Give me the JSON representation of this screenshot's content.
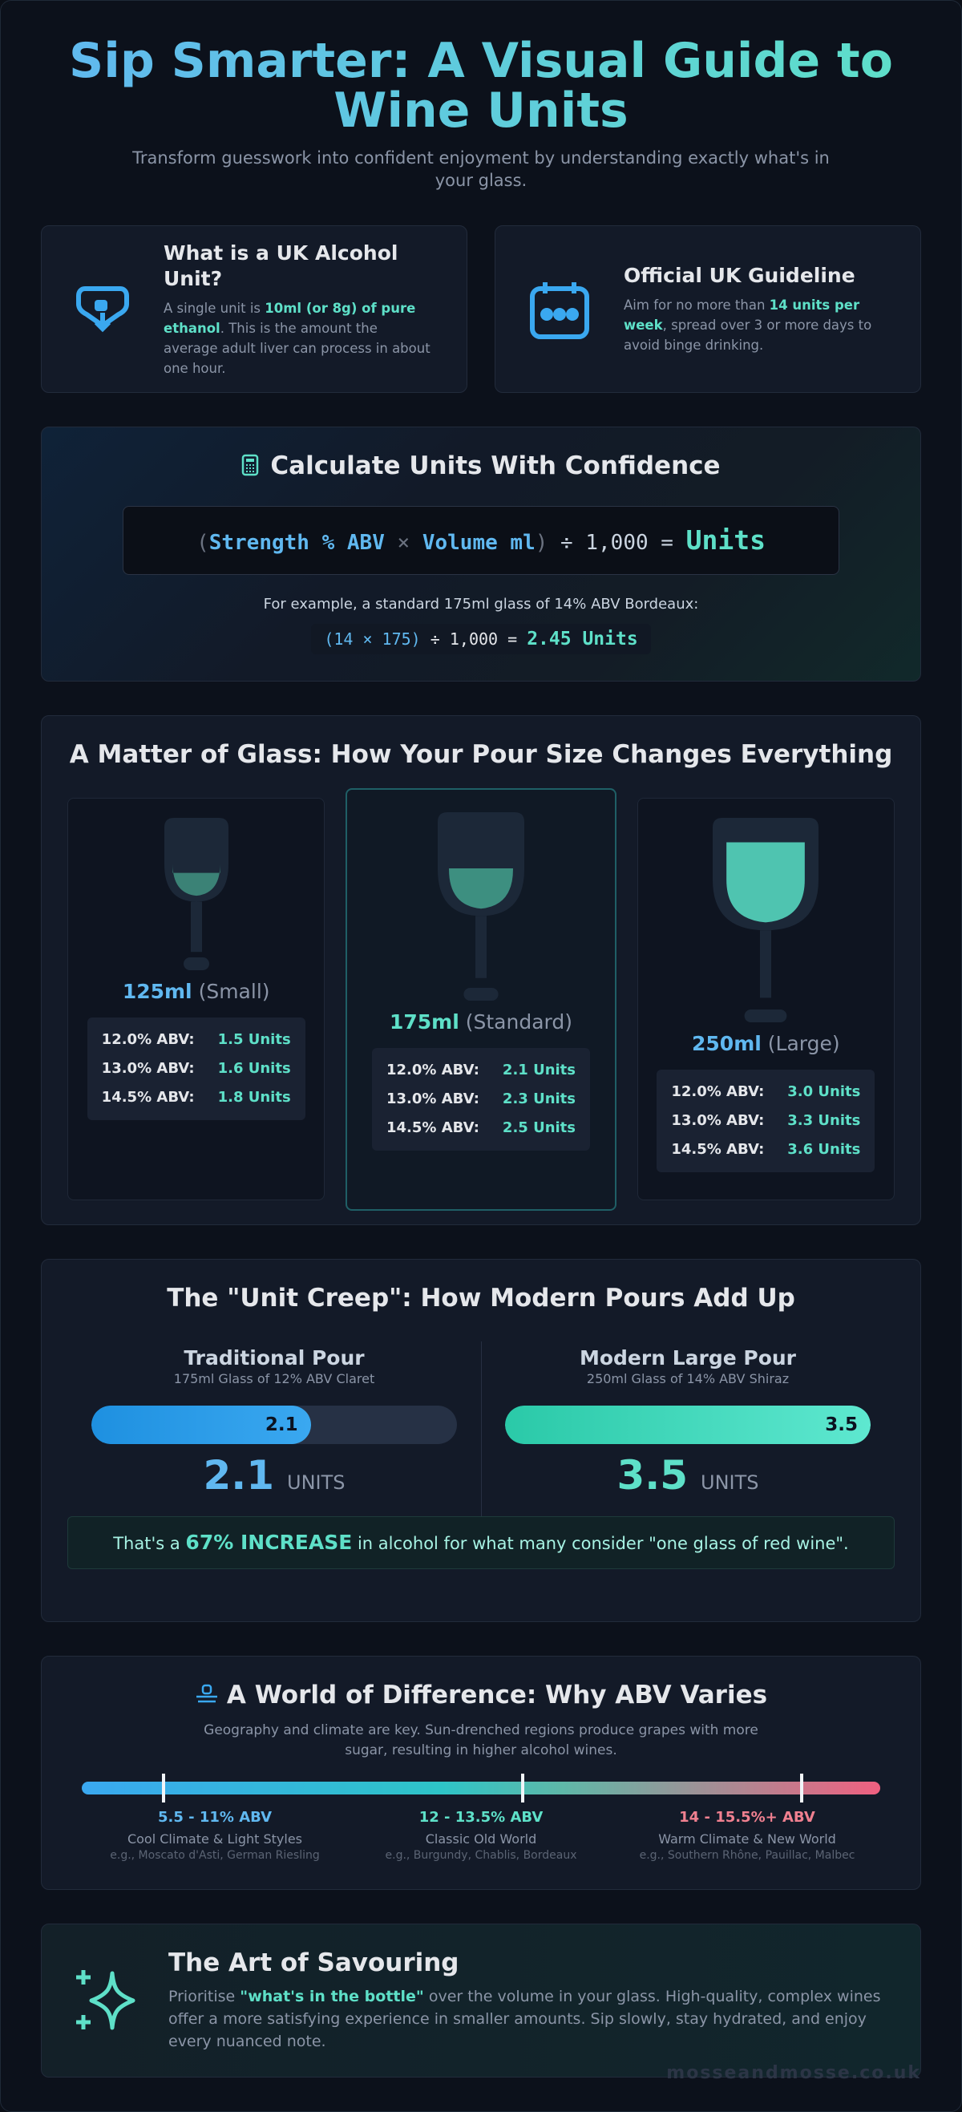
{
  "header": {
    "title": "Sip Smarter: A Visual Guide to Wine Units",
    "subtitle": "Transform guesswork into confident enjoyment by understanding exactly what's in your glass."
  },
  "info_cards": [
    {
      "title": "What is a UK Alcohol Unit?",
      "text_before": "A single unit is ",
      "highlight": "10ml (or 8g) of pure ethanol",
      "text_after": ". This is the amount the average adult liver can process in about one hour."
    },
    {
      "title": "Official UK Guideline",
      "text_before": "Aim for no more than ",
      "highlight": "14 units per week",
      "text_after": ", spread over 3 or more days to avoid binge drinking."
    }
  ],
  "calculator": {
    "title": "Calculate Units With Confidence",
    "formula": {
      "open": "(",
      "strength": "Strength % ABV",
      "times": "×",
      "volume": "Volume ml",
      "close": ")",
      "divide": "÷ 1,000 =",
      "result": "Units"
    },
    "example_text": "For example, a standard 175ml glass of 14% ABV Bordeaux:",
    "example": {
      "open": "(14 × 175)",
      "divide": "÷ 1,000 =",
      "result": "2.45 Units"
    }
  },
  "glasses": {
    "title": "A Matter of Glass: How Your Pour Size Changes Everything",
    "items": [
      {
        "size": "125ml",
        "label": "(Small)",
        "rows": [
          [
            "12.0% ABV:",
            "1.5 Units"
          ],
          [
            "13.0% ABV:",
            "1.6 Units"
          ],
          [
            "14.5% ABV:",
            "1.8 Units"
          ]
        ]
      },
      {
        "size": "175ml",
        "label": "(Standard)",
        "rows": [
          [
            "12.0% ABV:",
            "2.1 Units"
          ],
          [
            "13.0% ABV:",
            "2.3 Units"
          ],
          [
            "14.5% ABV:",
            "2.5 Units"
          ]
        ]
      },
      {
        "size": "250ml",
        "label": "(Large)",
        "rows": [
          [
            "12.0% ABV:",
            "3.0 Units"
          ],
          [
            "13.0% ABV:",
            "3.3 Units"
          ],
          [
            "14.5% ABV:",
            "3.6 Units"
          ]
        ]
      }
    ]
  },
  "unit_creep": {
    "title": "The \"Unit Creep\": How Modern Pours Add Up",
    "pours": [
      {
        "title": "Traditional Pour",
        "subtitle": "175ml Glass of 12% ABV Claret",
        "value": 2.1,
        "unit": "UNITS"
      },
      {
        "title": "Modern Large Pour",
        "subtitle": "250ml Glass of 14% ABV Shiraz",
        "value": 3.5,
        "unit": "UNITS"
      }
    ],
    "summary": {
      "before": "That's a ",
      "highlight": "67% INCREASE",
      "after": " in alcohol for what many consider \"one glass of red wine\"."
    }
  },
  "abv": {
    "title": "A World of Difference: Why ABV Varies",
    "subtitle": "Geography and climate are key. Sun-drenched regions produce grapes with more sugar, resulting in higher alcohol wines.",
    "ranges": [
      {
        "range": "5.5 - 11% ABV",
        "style": "Cool Climate & Light Styles",
        "examples": "e.g., Moscato d'Asti, German Riesling"
      },
      {
        "range": "12 - 13.5% ABV",
        "style": "Classic Old World",
        "examples": "e.g., Burgundy, Chablis, Bordeaux"
      },
      {
        "range": "14 - 15.5%+ ABV",
        "style": "Warm Climate & New World",
        "examples": "e.g., Southern Rhône, Pauillac, Malbec"
      }
    ]
  },
  "savouring": {
    "title": "The Art of Savouring",
    "text_before": "Prioritise ",
    "highlight": "\"what's in the bottle\"",
    "text_after": " over the volume in your glass. High-quality, complex wines offer a more satisfying experience in smaller amounts. Sip slowly, stay hydrated, and enjoy every nuanced note."
  },
  "footer": "mosseandmosse.co.uk"
}
